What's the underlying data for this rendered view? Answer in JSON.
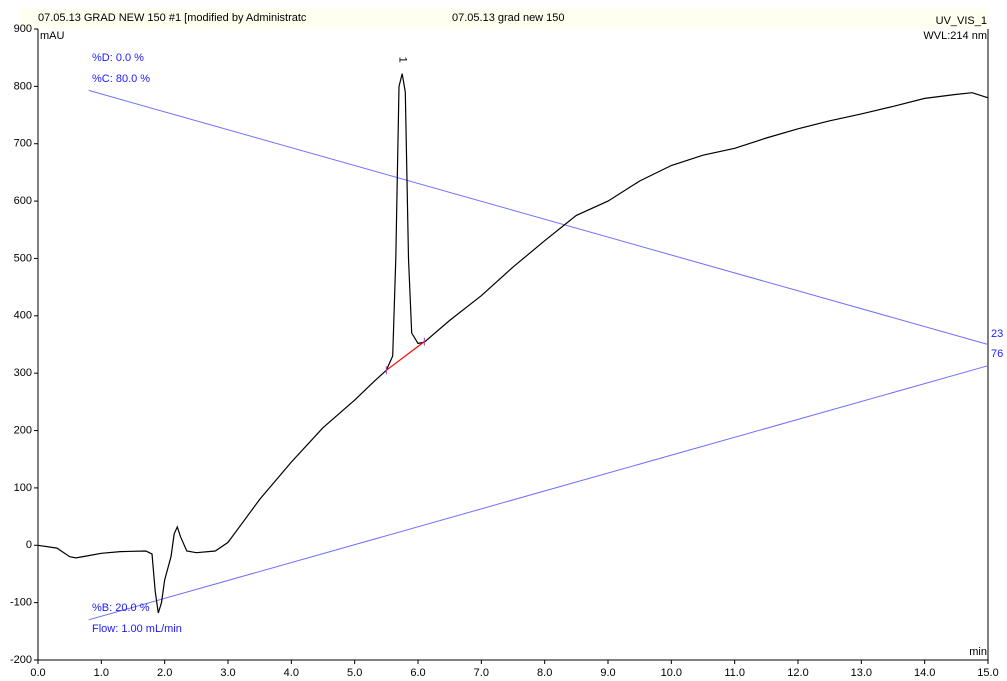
{
  "chart_data": {
    "type": "line",
    "header": [
      "07.05.13 GRAD NEW 150 #1 [modified by Administratc",
      "07.05.13 grad new 150",
      "UV_VIS_1"
    ],
    "y_label": "mAU",
    "wavelength": "WVL:214 nm",
    "x_label": "min",
    "x": [
      0,
      0.3,
      0.5,
      0.6,
      0.8,
      1.0,
      1.3,
      1.7,
      1.8,
      1.85,
      1.9,
      1.95,
      2.0,
      2.1,
      2.15,
      2.2,
      2.25,
      2.35,
      2.5,
      2.8,
      3.0,
      3.2,
      3.5,
      4.0,
      4.5,
      5.0,
      5.3,
      5.5,
      5.6,
      5.65,
      5.7,
      5.75,
      5.8,
      5.85,
      5.9,
      6.0,
      6.1,
      6.5,
      7.0,
      7.5,
      8.0,
      8.5,
      9.0,
      9.5,
      10.0,
      10.5,
      11.0,
      11.5,
      12.0,
      12.5,
      13.0,
      13.5,
      14.0,
      14.5,
      14.75,
      15.0
    ],
    "series": [
      {
        "color": "#000000",
        "values": [
          0,
          -5,
          -20,
          -22,
          -18,
          -14,
          -11,
          -10,
          -15,
          -80,
          -118,
          -100,
          -60,
          -20,
          20,
          32,
          15,
          -10,
          -13,
          -10,
          5,
          35,
          80,
          145,
          205,
          253,
          285,
          305,
          330,
          500,
          800,
          822,
          790,
          500,
          370,
          352,
          354,
          392,
          435,
          485,
          531,
          575,
          600,
          635,
          662,
          680,
          692,
          710,
          726,
          740,
          752,
          765,
          779,
          786,
          789,
          780
        ]
      }
    ],
    "baseline": {
      "x": [
        5.5,
        6.1
      ],
      "values": [
        305,
        355
      ],
      "color": "#ff0000"
    },
    "gradient_lines": [
      {
        "x": [
          0.8,
          15
        ],
        "values": [
          793,
          350
        ],
        "color": "#6f6fff"
      },
      {
        "x": [
          0.8,
          15
        ],
        "values": [
          -130,
          313
        ],
        "color": "#6f6fff"
      }
    ],
    "annotations": [
      "%D: 0.0 %",
      "%C: 80.0 %",
      "%B: 20.0 %",
      "Flow: 1.00 mL/min",
      "23",
      "76"
    ],
    "peak_label": "1",
    "xlim": [
      0,
      15
    ],
    "ylim": [
      -200,
      900
    ],
    "xticks": [
      {
        "value": 0,
        "label": "0.0"
      },
      {
        "value": 1,
        "label": "1.0"
      },
      {
        "value": 2,
        "label": "2.0"
      },
      {
        "value": 3,
        "label": "3.0"
      },
      {
        "value": 4,
        "label": "4.0"
      },
      {
        "value": 5,
        "label": "5.0"
      },
      {
        "value": 6,
        "label": "6.0"
      },
      {
        "value": 7,
        "label": "7.0"
      },
      {
        "value": 8,
        "label": "8.0"
      },
      {
        "value": 9,
        "label": "9.0"
      },
      {
        "value": 10,
        "label": "10.0"
      },
      {
        "value": 11,
        "label": "11.0"
      },
      {
        "value": 12,
        "label": "12.0"
      },
      {
        "value": 13,
        "label": "13.0"
      },
      {
        "value": 14,
        "label": "14.0"
      },
      {
        "value": 15,
        "label": "15.0"
      }
    ],
    "yticks": [
      -200,
      -100,
      0,
      100,
      200,
      300,
      400,
      500,
      600,
      700,
      800,
      900
    ]
  }
}
